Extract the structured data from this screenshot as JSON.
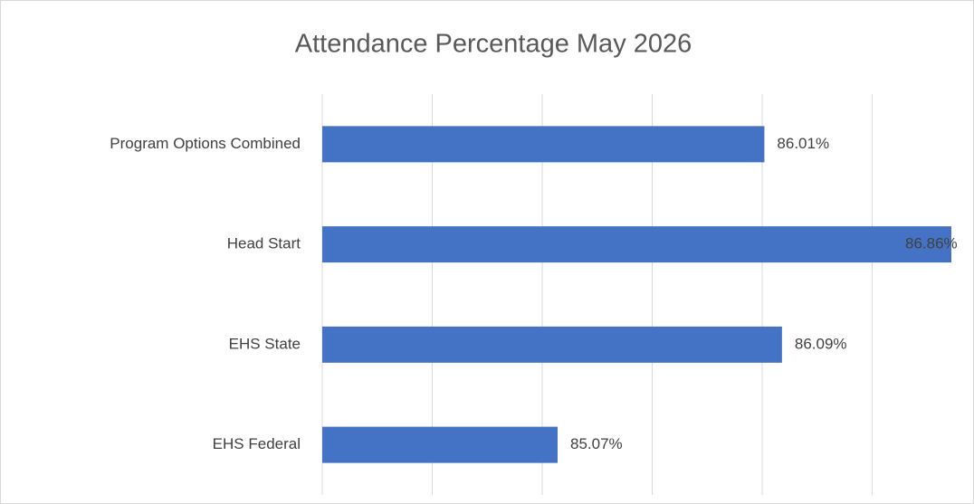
{
  "chart_data": {
    "type": "bar",
    "orientation": "horizontal",
    "title": "Attendance Percentage May 2026",
    "categories": [
      "Program Options Combined",
      "Head Start",
      "EHS State",
      "EHS Federal"
    ],
    "values": [
      86.01,
      86.86,
      86.09,
      85.07
    ],
    "value_labels": [
      "86.01%",
      "86.86%",
      "86.09%",
      "85.07%"
    ],
    "color": "#4472c4",
    "xlim": [
      84,
      87
    ],
    "xticks": [
      84,
      84.5,
      85,
      85.5,
      86,
      86.5
    ],
    "grid": true
  }
}
